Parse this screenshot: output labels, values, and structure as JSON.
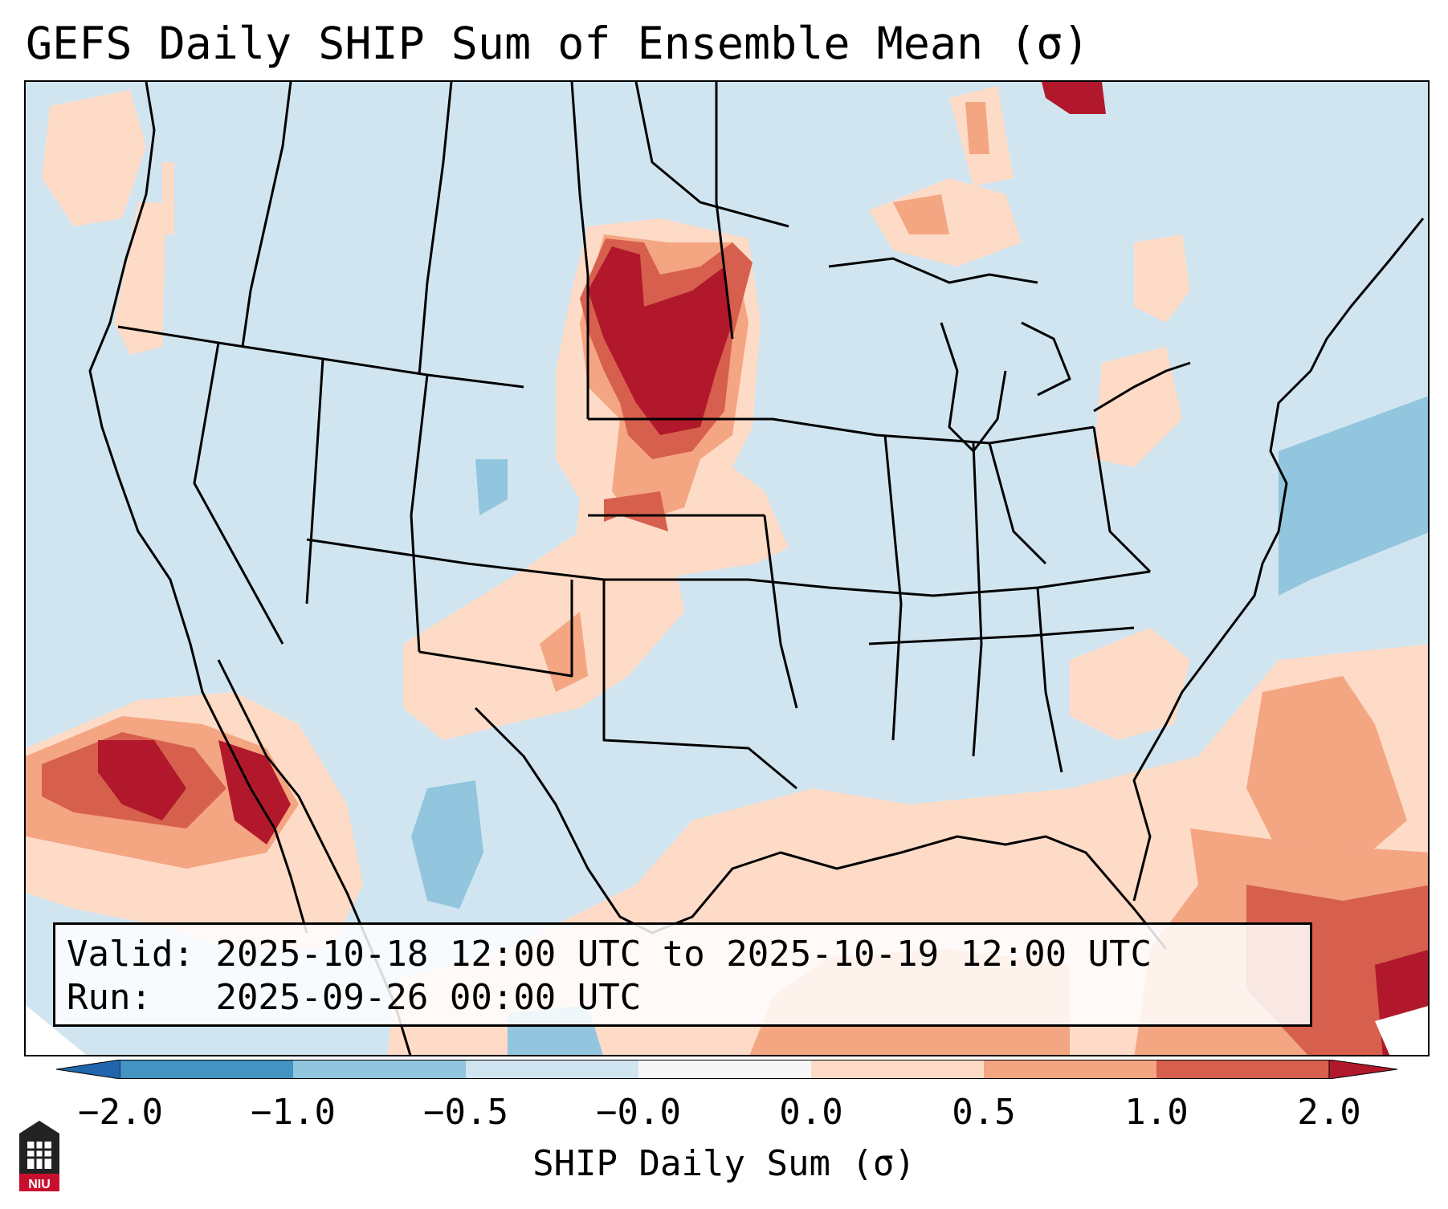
{
  "title": "GEFS Daily SHIP Sum of Ensemble Mean (σ)",
  "info": {
    "valid_label": "Valid:",
    "valid_value": "2025-10-18 12:00 UTC to 2025-10-19 12:00 UTC",
    "run_label": "Run:",
    "run_value": "2025-09-26 00:00 UTC"
  },
  "colorbar": {
    "label": "SHIP Daily Sum (σ)",
    "ticks": [
      "−2.0",
      "−1.0",
      "−0.5",
      "−0.0",
      "0.0",
      "0.5",
      "1.0",
      "2.0"
    ],
    "colors": [
      "#4393c3",
      "#92c5de",
      "#d1e5f0",
      "#f7f7f7",
      "#fddbc7",
      "#f4a582",
      "#d6604d"
    ],
    "extend_low": "#2166ac",
    "extend_high": "#b2182b"
  },
  "legend_colors": {
    "background": "#d1e5f0",
    "light_red": "#fddbc7",
    "mid_red": "#f4a582",
    "red": "#d6604d",
    "dark_red": "#b2182b",
    "light_blue": "#92c5de"
  },
  "logo": {
    "text": "NIU",
    "icon": "university-seal-icon"
  }
}
